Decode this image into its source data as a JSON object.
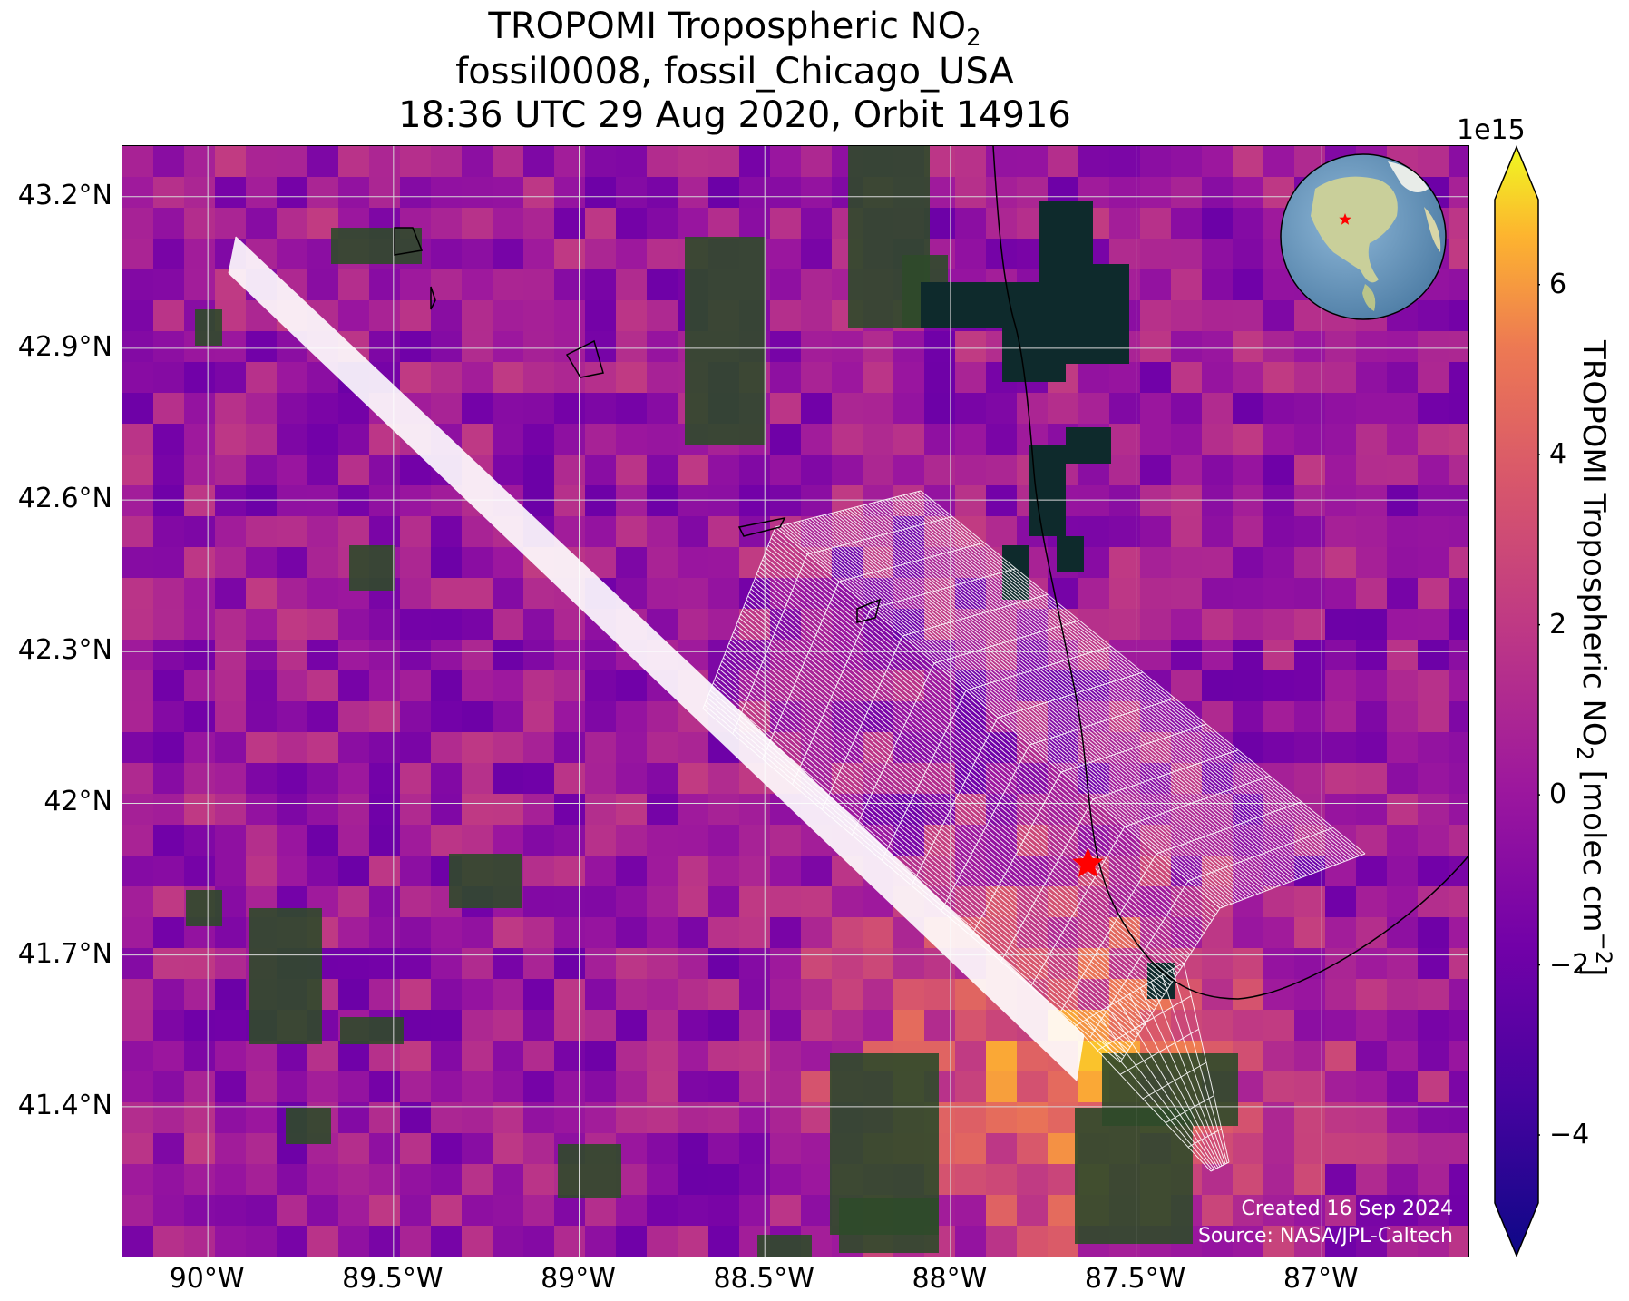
{
  "title": {
    "line1_prefix": "TROPOMI Tropospheric NO",
    "line1_sub": "2",
    "line2": "fossil0008, fossil_Chicago_USA",
    "line3": "18:36 UTC 29 Aug 2020, Orbit 14916"
  },
  "axes": {
    "lat_labels": [
      "43.2°N",
      "42.9°N",
      "42.6°N",
      "42.3°N",
      "42°N",
      "41.7°N",
      "41.4°N"
    ],
    "lon_labels": [
      "90°W",
      "89.5°W",
      "89°W",
      "88.5°W",
      "88°W",
      "87.5°W",
      "87°W"
    ],
    "lat_values": [
      43.2,
      42.9,
      42.6,
      42.3,
      42.0,
      41.7,
      41.4
    ],
    "lon_values": [
      -90.0,
      -89.5,
      -89.0,
      -88.5,
      -88.0,
      -87.5,
      -87.0
    ],
    "lat_range": [
      41.1,
      43.3
    ],
    "lon_range": [
      -90.23,
      -86.6
    ]
  },
  "colorbar": {
    "label_prefix": "TROPOMI Tropospheric NO",
    "label_sub": "2",
    "label_suffix": " [molec cm",
    "label_sup": "−2",
    "label_end": "]",
    "scale_label": "1e15",
    "ticks": [
      "6",
      "4",
      "2",
      "0",
      "−2",
      "−4"
    ],
    "tick_values": [
      6,
      4,
      2,
      0,
      -2,
      -4
    ],
    "range": [
      -4.8,
      7
    ],
    "colormap": "plasma",
    "extend": "both"
  },
  "target": {
    "name": "fossil_Chicago_USA",
    "lat": 41.88,
    "lon": -87.63,
    "marker_color": "#ff0000"
  },
  "credits": {
    "line1": "Created 16 Sep 2024",
    "line2": "Source: NASA/JPL-Caltech"
  },
  "colors": {
    "grid": "#d8d8d8",
    "swath_outline": "#ffffff",
    "coastline": "#000000",
    "lake": "#0e2a2c",
    "land": "#2f4a2a"
  }
}
